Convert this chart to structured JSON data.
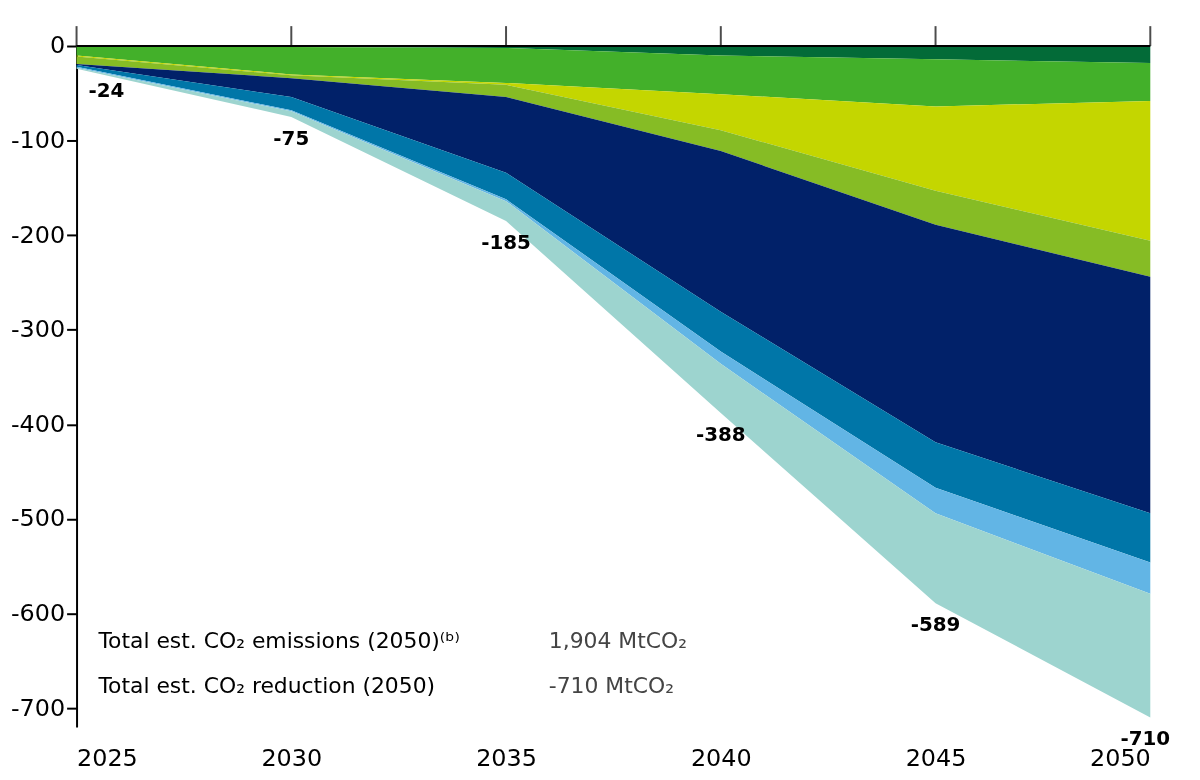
{
  "chart_data": {
    "type": "area",
    "stacked": true,
    "x": [
      2025,
      2030,
      2035,
      2040,
      2045,
      2050
    ],
    "series": [
      {
        "color": "#036b38",
        "values": [
          0,
          -1,
          -2,
          -10,
          -14,
          -18
        ]
      },
      {
        "color": "#43b02a",
        "values": [
          -10,
          -29,
          -37,
          -41,
          -50,
          -40
        ]
      },
      {
        "color": "#c4d600",
        "values": [
          -1,
          -1,
          -2,
          -38,
          -89,
          -148
        ]
      },
      {
        "color": "#86bc25",
        "values": [
          -8,
          -3,
          -13,
          -22,
          -36,
          -38
        ]
      },
      {
        "color": "#012169",
        "values": [
          -1,
          -20,
          -80,
          -170,
          -230,
          -250
        ]
      },
      {
        "color": "#0076a8",
        "values": [
          -2,
          -14,
          -28,
          -42,
          -48,
          -52
        ]
      },
      {
        "color": "#62b5e5",
        "values": [
          -1,
          -1,
          -2,
          -13,
          -27,
          -33
        ]
      },
      {
        "color": "#9dd4cf",
        "values": [
          -1,
          -6,
          -21,
          -52,
          -95,
          -131
        ]
      }
    ],
    "totals": [
      "-24",
      "-75",
      "-185",
      "-388",
      "-589",
      "-710"
    ],
    "xlim": [
      2025,
      2050
    ],
    "xticks": [
      2025,
      2030,
      2035,
      2040,
      2045,
      2050
    ],
    "ylim": [
      -720,
      0
    ],
    "yticks": [
      0,
      -100,
      -200,
      -300,
      -400,
      -500,
      -600,
      -700
    ],
    "grid": false,
    "legend": false,
    "annotations": [
      "Total est. CO₂ emissions (2050)⁽ᵇ⁾",
      "1,904 MtCO₂",
      "Total est. CO₂ reduction (2050)",
      "-710 MtCO₂"
    ]
  }
}
